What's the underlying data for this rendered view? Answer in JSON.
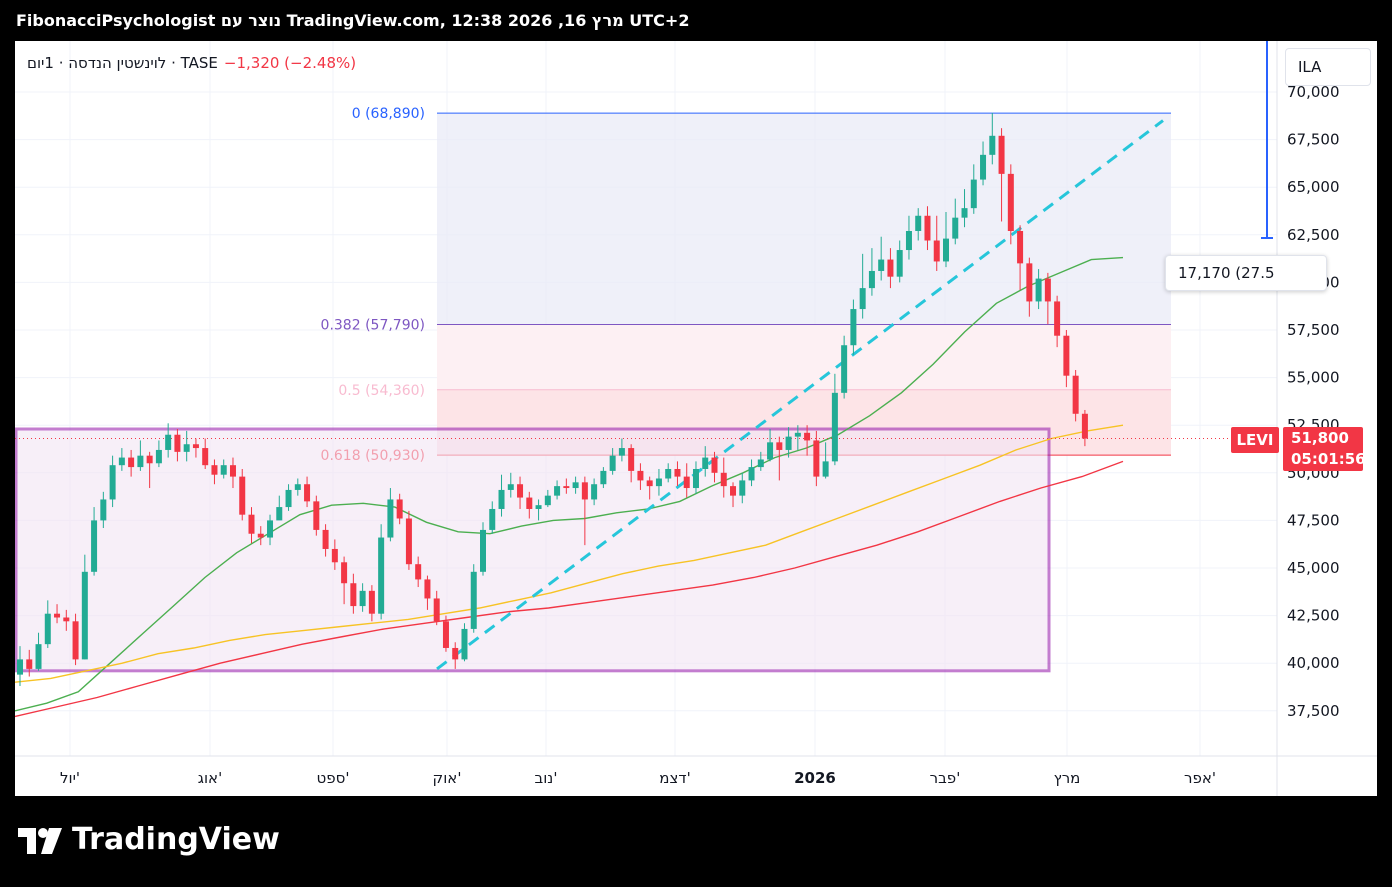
{
  "header": {
    "title": "FibonacciPsychologist נוצר עם TradingView.com, 12:38 2026 ,16 מרץ UTC+2"
  },
  "legend": {
    "symbol": "לוינשטין הנדסה · 1יום · TASE",
    "change": "−1,320 (−2.48%)"
  },
  "currency": "ILA",
  "measure_label": "17,170 (27.5",
  "price_tag": {
    "symbol": "LEVI",
    "price": "51,800",
    "countdown": "05:01:56"
  },
  "footer": {
    "brand": "TradingView"
  },
  "colors": {
    "up": "#22ab94",
    "down": "#f23645",
    "sma_short": "#4caf50",
    "sma_mid": "#f7c325",
    "sma_long": "#f23645",
    "trend": "#26c6da",
    "box": "#9c27b0"
  },
  "chart_data": {
    "type": "candlestick",
    "ylim": [
      35000,
      72000
    ],
    "y_ticks": [
      37500,
      40000,
      42500,
      45000,
      47500,
      50000,
      52500,
      55000,
      57500,
      60000,
      62500,
      65000,
      67500,
      70000
    ],
    "y_tick_labels": [
      "37,500",
      "40,000",
      "42,500",
      "45,000",
      "47,500",
      "50,000",
      "52,500",
      "55,000",
      "57,500",
      "60,000",
      "62,500",
      "65,000",
      "67,500",
      "70,000"
    ],
    "x_labels": [
      "יול'",
      "אוג'",
      "ספט'",
      "אוק'",
      "נוב'",
      "דצמ'",
      "2026",
      "פבר'",
      "מרץ",
      "אפר'"
    ],
    "fib_levels": [
      {
        "ratio": "0",
        "label": "0 (68,890)",
        "price": 68890,
        "color": "#2962ff"
      },
      {
        "ratio": "0.382",
        "label": "0.382 (57,790)",
        "price": 57790,
        "color": "#7e57c2"
      },
      {
        "ratio": "0.5",
        "label": "0.5 (54,360)",
        "price": 54360,
        "color": "#f8bbd0"
      },
      {
        "ratio": "0.618",
        "label": "0.618 (50,930)",
        "price": 50930,
        "color": "#f23645"
      }
    ],
    "range_box": {
      "from": "יול'",
      "to": "מרץ",
      "high": 52300,
      "low": 39600
    },
    "trend_line": {
      "from_price": 39700,
      "to_price": 68500
    },
    "current_price": 51800,
    "series": [
      {
        "name": "SMA short",
        "values": [
          37500,
          37900,
          38500,
          40000,
          41500,
          43000,
          44500,
          45800,
          46800,
          47800,
          48300,
          48400,
          48200,
          47400,
          46900,
          46800,
          47200,
          47500,
          47600,
          47900,
          48100,
          48500,
          49300,
          50000,
          50800,
          51300,
          52000,
          53000,
          54200,
          55700,
          57400,
          58900,
          59800,
          60500,
          61200,
          61300
        ]
      },
      {
        "name": "SMA mid",
        "values": [
          39000,
          39200,
          39600,
          40000,
          40500,
          40800,
          41200,
          41500,
          41700,
          41900,
          42100,
          42300,
          42600,
          42900,
          43300,
          43700,
          44200,
          44700,
          45100,
          45400,
          45800,
          46200,
          46900,
          47600,
          48300,
          49000,
          49700,
          50400,
          51200,
          51800,
          52200,
          52500
        ]
      },
      {
        "name": "SMA long",
        "values": [
          37200,
          37700,
          38200,
          38800,
          39400,
          40000,
          40500,
          41000,
          41400,
          41800,
          42100,
          42400,
          42700,
          42900,
          43200,
          43500,
          43800,
          44100,
          44500,
          45000,
          45600,
          46200,
          46900,
          47700,
          48500,
          49200,
          49800,
          50600
        ]
      }
    ],
    "candles": [
      [
        39400,
        40200,
        38800,
        40900
      ],
      [
        40200,
        39700,
        39300,
        40700
      ],
      [
        39700,
        41000,
        39600,
        41600
      ],
      [
        41000,
        42600,
        40800,
        43300
      ],
      [
        42600,
        42400,
        42100,
        43100
      ],
      [
        42400,
        42200,
        41700,
        42800
      ],
      [
        42200,
        40200,
        39900,
        42600
      ],
      [
        40200,
        44800,
        40200,
        45700
      ],
      [
        44800,
        47500,
        44600,
        48200
      ],
      [
        47500,
        48600,
        47100,
        49000
      ],
      [
        48600,
        50400,
        48200,
        50900
      ],
      [
        50400,
        50800,
        50100,
        51300
      ],
      [
        50800,
        50300,
        49800,
        51200
      ],
      [
        50300,
        50900,
        50100,
        51700
      ],
      [
        50900,
        50500,
        49200,
        51100
      ],
      [
        50500,
        51200,
        50300,
        51700
      ],
      [
        51200,
        52000,
        50800,
        52600
      ],
      [
        52000,
        51100,
        50600,
        52300
      ],
      [
        51100,
        51500,
        50600,
        52200
      ],
      [
        51500,
        51300,
        50800,
        51800
      ],
      [
        51300,
        50400,
        50200,
        51800
      ],
      [
        50400,
        49900,
        49400,
        50700
      ],
      [
        49900,
        50400,
        49700,
        50700
      ],
      [
        50400,
        49800,
        49200,
        50800
      ],
      [
        49800,
        47800,
        47500,
        50200
      ],
      [
        47800,
        46800,
        46300,
        48200
      ],
      [
        46800,
        46600,
        46200,
        47200
      ],
      [
        46600,
        47500,
        46200,
        47800
      ],
      [
        47500,
        48200,
        47600,
        48800
      ],
      [
        48200,
        49100,
        48000,
        49400
      ],
      [
        49100,
        49400,
        48800,
        49700
      ],
      [
        49400,
        48500,
        48200,
        49800
      ],
      [
        48500,
        47000,
        46700,
        48800
      ],
      [
        47000,
        46000,
        45600,
        47300
      ],
      [
        46000,
        45300,
        44900,
        46500
      ],
      [
        45300,
        44200,
        43100,
        45600
      ],
      [
        44200,
        43000,
        42600,
        44700
      ],
      [
        43000,
        43800,
        42700,
        44200
      ],
      [
        43800,
        42600,
        42200,
        44100
      ],
      [
        42600,
        46600,
        42300,
        47300
      ],
      [
        46600,
        48600,
        46400,
        49200
      ],
      [
        48600,
        47600,
        47300,
        48900
      ],
      [
        47600,
        45200,
        44900,
        48000
      ],
      [
        45200,
        44400,
        44000,
        45600
      ],
      [
        44400,
        43400,
        42800,
        44600
      ],
      [
        43400,
        42200,
        42000,
        43800
      ],
      [
        42200,
        40800,
        40600,
        42500
      ],
      [
        40800,
        40200,
        39700,
        41100
      ],
      [
        40200,
        41800,
        40100,
        42100
      ],
      [
        41800,
        44800,
        41600,
        45200
      ],
      [
        44800,
        47000,
        44600,
        47400
      ],
      [
        47000,
        48100,
        46800,
        48500
      ],
      [
        48100,
        49100,
        47700,
        49900
      ],
      [
        49100,
        49400,
        48700,
        50000
      ],
      [
        49400,
        48700,
        48100,
        49800
      ],
      [
        48700,
        48100,
        47600,
        49000
      ],
      [
        48100,
        48300,
        47500,
        48600
      ],
      [
        48300,
        48800,
        48200,
        49100
      ],
      [
        48800,
        49300,
        48600,
        49600
      ],
      [
        49300,
        49200,
        48900,
        49700
      ],
      [
        49200,
        49500,
        48900,
        49800
      ],
      [
        49500,
        48600,
        46200,
        49800
      ],
      [
        48600,
        49400,
        48300,
        49700
      ],
      [
        49400,
        50100,
        49200,
        50300
      ],
      [
        50100,
        50900,
        49900,
        51300
      ],
      [
        50900,
        51300,
        50600,
        51800
      ],
      [
        51300,
        50100,
        49500,
        51500
      ],
      [
        50100,
        49600,
        49100,
        50500
      ],
      [
        49600,
        49300,
        48600,
        49800
      ],
      [
        49300,
        49700,
        48800,
        50200
      ],
      [
        49700,
        50200,
        49500,
        50500
      ],
      [
        50200,
        49800,
        49300,
        50600
      ],
      [
        49800,
        49200,
        48700,
        50500
      ],
      [
        49200,
        50200,
        48900,
        50600
      ],
      [
        50200,
        50800,
        49800,
        51400
      ],
      [
        50800,
        50000,
        49500,
        51100
      ],
      [
        50000,
        49300,
        48700,
        50800
      ],
      [
        49300,
        48800,
        48200,
        49500
      ],
      [
        48800,
        49600,
        48400,
        50000
      ],
      [
        49600,
        50300,
        49300,
        50700
      ],
      [
        50300,
        50700,
        50100,
        51100
      ],
      [
        50700,
        51600,
        50600,
        52300
      ],
      [
        51600,
        51200,
        49600,
        51900
      ],
      [
        51200,
        51900,
        50800,
        52400
      ],
      [
        51900,
        52100,
        51200,
        52500
      ],
      [
        52100,
        51700,
        50900,
        52500
      ],
      [
        51700,
        49800,
        49300,
        52200
      ],
      [
        49800,
        50600,
        49700,
        51600
      ],
      [
        50600,
        54200,
        50400,
        55200
      ],
      [
        54200,
        56700,
        53900,
        57200
      ],
      [
        56700,
        58600,
        56200,
        59100
      ],
      [
        58600,
        59700,
        58100,
        61500
      ],
      [
        59700,
        60600,
        59300,
        61800
      ],
      [
        60600,
        61200,
        60100,
        62400
      ],
      [
        61200,
        60300,
        59700,
        61800
      ],
      [
        60300,
        61700,
        60000,
        62200
      ],
      [
        61700,
        62700,
        61200,
        63500
      ],
      [
        62700,
        63500,
        62200,
        63900
      ],
      [
        63500,
        62200,
        61700,
        64000
      ],
      [
        62200,
        61100,
        60600,
        63500
      ],
      [
        61100,
        62300,
        60800,
        63700
      ],
      [
        62300,
        63400,
        62000,
        64400
      ],
      [
        63400,
        63900,
        62900,
        64900
      ],
      [
        63900,
        65400,
        63600,
        66200
      ],
      [
        65400,
        66700,
        65100,
        67400
      ],
      [
        66700,
        67700,
        66200,
        68900
      ],
      [
        67700,
        65700,
        63200,
        68100
      ],
      [
        65700,
        62700,
        62000,
        66200
      ],
      [
        62700,
        61000,
        59600,
        63000
      ],
      [
        61000,
        59000,
        58200,
        61300
      ],
      [
        59000,
        60200,
        58600,
        60700
      ],
      [
        60200,
        59000,
        57800,
        60500
      ],
      [
        59000,
        57200,
        56600,
        59300
      ],
      [
        57200,
        55100,
        54500,
        57500
      ],
      [
        55100,
        53100,
        52700,
        55400
      ],
      [
        53100,
        51800,
        51400,
        53300
      ]
    ]
  }
}
